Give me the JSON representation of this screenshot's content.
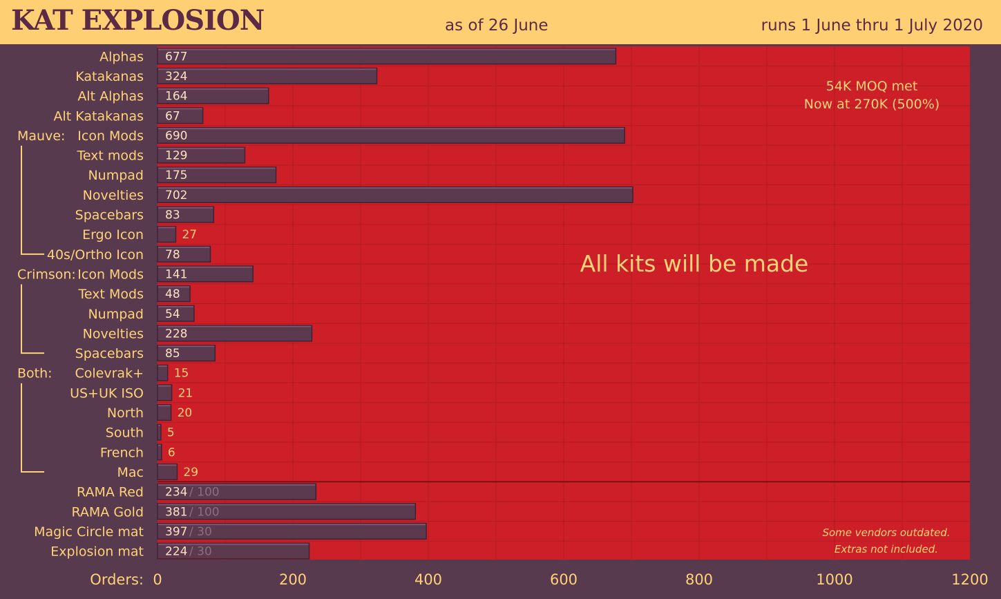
{
  "header": {
    "title": "KAT EXPLOSION",
    "as_of": "as of 26 June",
    "runs": "runs 1 June thru 1 July 2020"
  },
  "colors": {
    "background": "#573a4d",
    "header": "#ffcf73",
    "plot_area": "#cc1f27",
    "bar": "#5b3a50",
    "text": "#ffd27a"
  },
  "chart_data": {
    "type": "bar",
    "orientation": "horizontal",
    "xlabel": "Orders:",
    "xlim": [
      0,
      1200
    ],
    "xticks": [
      0,
      200,
      400,
      600,
      800,
      1000,
      1200
    ],
    "grid": true,
    "groups": [
      {
        "label": "Mauve:",
        "from": "Icon Mods",
        "to": "40s/Ortho Icon"
      },
      {
        "label": "Crimson:",
        "from": "Icon Mods",
        "to": "Spacebars"
      },
      {
        "label": "Both:",
        "from": "Colevrak+",
        "to": "Mac"
      }
    ],
    "categories": [
      "Alphas",
      "Katakanas",
      "Alt Alphas",
      "Alt Katakanas",
      "Icon Mods",
      "Text mods",
      "Numpad",
      "Novelties",
      "Spacebars",
      "Ergo Icon",
      "40s/Ortho Icon",
      "Icon Mods",
      "Text Mods",
      "Numpad",
      "Novelties",
      "Spacebars",
      "Colevrak+",
      "US+UK ISO",
      "North",
      "South",
      "French",
      "Mac",
      "RAMA Red",
      "RAMA Gold",
      "Magic Circle mat",
      "Explosion mat"
    ],
    "values": [
      677,
      324,
      164,
      67,
      690,
      129,
      175,
      702,
      83,
      27,
      78,
      141,
      48,
      54,
      228,
      85,
      15,
      21,
      20,
      5,
      6,
      29,
      234,
      381,
      397,
      224
    ],
    "targets": [
      null,
      null,
      null,
      null,
      null,
      null,
      null,
      null,
      null,
      null,
      null,
      null,
      null,
      null,
      null,
      null,
      null,
      null,
      null,
      null,
      null,
      null,
      "/ 100",
      "/ 100",
      "/ 30",
      "/ 30"
    ],
    "annotations": {
      "moq": "54K MOQ met",
      "progress": "Now at 270K (500%)",
      "main": "All kits will be made",
      "vendors_1": "Some vendors outdated.",
      "vendors_2": "Extras not included."
    }
  }
}
